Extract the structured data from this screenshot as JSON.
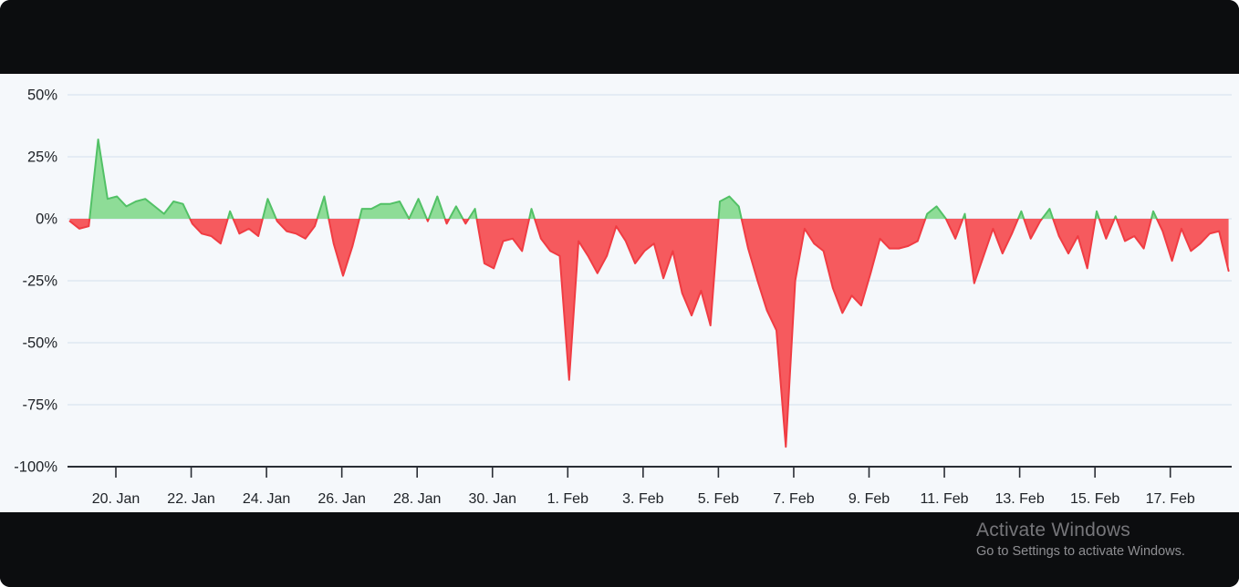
{
  "window": {
    "title": ""
  },
  "watermark": {
    "title": "Activate Windows",
    "subtitle": "Go to Settings to activate Windows."
  },
  "colors": {
    "window_bg": "#0c0d0f",
    "chart_bg": "#f5f8fb",
    "gridline": "#dee8f2",
    "axis_line": "#2a2e35",
    "tick_label": "#1e2227",
    "positive_fill": "#8edc97",
    "positive_line": "#52c166",
    "negative_fill": "#f65a5e",
    "negative_line": "#f03c43",
    "watermark_title": "#76767a",
    "watermark_subtitle": "#8f8f93"
  },
  "chart_data": {
    "type": "area",
    "title": "",
    "xlabel": "",
    "ylabel": "",
    "unit": "%",
    "ylim": [
      -100,
      50
    ],
    "grid": true,
    "legend": "none",
    "y_tick_labels": [
      "50%",
      "25%",
      "0%",
      "-25%",
      "-50%",
      "-75%",
      "-100%"
    ],
    "y_tick_values": [
      50,
      25,
      0,
      -25,
      -50,
      -75,
      -100
    ],
    "x_tick_labels": [
      "20. Jan",
      "22. Jan",
      "24. Jan",
      "26. Jan",
      "28. Jan",
      "30. Jan",
      "1. Feb",
      "3. Feb",
      "5. Feb",
      "7. Feb",
      "9. Feb",
      "11. Feb",
      "13. Feb",
      "15. Feb",
      "17. Feb"
    ],
    "series_start_label": "18. Jan 18:00",
    "series_interval_hours": 6,
    "values": [
      -1,
      -4,
      -3,
      32,
      8,
      9,
      5,
      7,
      8,
      5,
      2,
      7,
      6,
      -2,
      -6,
      -7,
      -10,
      3,
      -6,
      -4,
      -7,
      8,
      -1,
      -5,
      -6,
      -8,
      -3,
      9,
      -10,
      -23,
      -11,
      4,
      4,
      6,
      6,
      7,
      0,
      8,
      -1,
      9,
      -2,
      5,
      -2,
      4,
      -18,
      -20,
      -9,
      -8,
      -13,
      4,
      -8,
      -13,
      -15,
      -65,
      -9,
      -15,
      -22,
      -15,
      -3,
      -9,
      -18,
      -13,
      -10,
      -24,
      -13,
      -30,
      -39,
      -29,
      -43,
      7,
      9,
      5,
      -12,
      -25,
      -37,
      -45,
      -92,
      -25,
      -4,
      -10,
      -13,
      -28,
      -38,
      -31,
      -35,
      -22,
      -8,
      -12,
      -12,
      -11,
      -9,
      2,
      5,
      0,
      -8,
      2,
      -26,
      -15,
      -4,
      -14,
      -6,
      3,
      -8,
      -1,
      4,
      -7,
      -14,
      -7,
      -20,
      3,
      -8,
      1,
      -9,
      -7,
      -12,
      3,
      -5,
      -17,
      -4,
      -13,
      -10,
      -6,
      -5,
      -21
    ]
  }
}
